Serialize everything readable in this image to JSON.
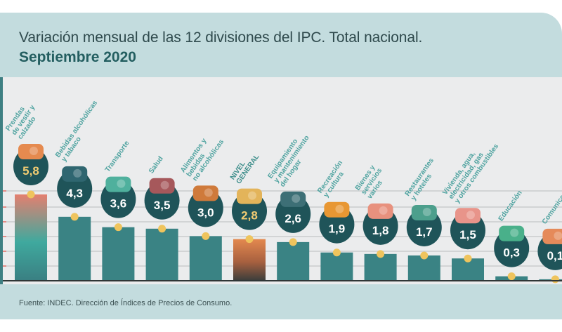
{
  "header": {
    "title": "Variación mensual de las 12 divisiones del IPC. Total nacional.",
    "subtitle": "Septiembre 2020"
  },
  "footer": {
    "source": "Fuente: INDEC. Dirección de Índices de Precios de Consumo."
  },
  "colors": {
    "bar": "#3a8384",
    "highlight_bar_top": "#e0826e",
    "highlight_bar_mid": "#3fa59c",
    "general_bar_top": "#e1874f",
    "general_bar_bottom": "#3c3f3d",
    "bubble": "#1f5459",
    "value_text": "#ffffff",
    "value_text_highlight": "#f2cc72",
    "label_text": "#4fa3a0",
    "marker": "#efc45d",
    "gridline": "#c9cbcd"
  },
  "chart_data": {
    "type": "bar",
    "title": "Variación mensual de las 12 divisiones del IPC. Total nacional.",
    "subtitle": "Septiembre 2020",
    "xlabel": "",
    "ylabel": "",
    "unit": "%",
    "ylim": [
      0,
      6
    ],
    "grid": true,
    "legend": "none",
    "categories": [
      "Prendas de vestir y calzado",
      "Bebidas alcohólicas y tabaco",
      "Transporte",
      "Salud",
      "Alimentos y bebidas no alcohólicas",
      "NIVEL GENERAL",
      "Equipamiento y mantenimiento del hogar",
      "Recreación y cultura",
      "Bienes y servicios varios",
      "Restaurantes y hoteles",
      "Vivienda, agua, electricidad, gas y otros combustibles",
      "Educación",
      "Comunicación"
    ],
    "label_lines": [
      [
        "Prendas",
        "de vestir y",
        "calzado"
      ],
      [
        "Bebidas alcohólicas",
        "y tabaco"
      ],
      [
        "Transporte"
      ],
      [
        "Salud"
      ],
      [
        "Alimentos y",
        "bebidas",
        "no alcohólicas"
      ],
      [
        "NIVEL",
        "GENERAL"
      ],
      [
        "Equipamiento",
        "y mantenimiento",
        "del hogar"
      ],
      [
        "Recreación",
        "y cultura"
      ],
      [
        "Bienes y",
        "servicios",
        "varios"
      ],
      [
        "Restaurantes",
        "y hoteles"
      ],
      [
        "Vivienda, agua,",
        "electricidad, gas",
        "y otros combustibles"
      ],
      [
        "Educación"
      ],
      [
        "Comunicación"
      ]
    ],
    "values": [
      5.8,
      4.3,
      3.6,
      3.5,
      3.0,
      2.8,
      2.6,
      1.9,
      1.8,
      1.7,
      1.5,
      0.3,
      0.1
    ],
    "value_labels": [
      "5,8",
      "4,3",
      "3,6",
      "3,5",
      "3,0",
      "2,8",
      "2,6",
      "1,9",
      "1,8",
      "1,7",
      "1,5",
      "0,3",
      "0,1"
    ],
    "icons": [
      "tshirt-icon",
      "bottle-icon",
      "car-icon",
      "medical-cross-icon",
      "roast-chicken-icon",
      "shopping-bag-icon",
      "washing-machine-icon",
      "cinema-bucket-icon",
      "scissors-icon",
      "suitcase-icon",
      "lightbulb-icon",
      "book-icon",
      "phone-icon"
    ],
    "highlight": {
      "max": 0,
      "general": 5
    }
  }
}
